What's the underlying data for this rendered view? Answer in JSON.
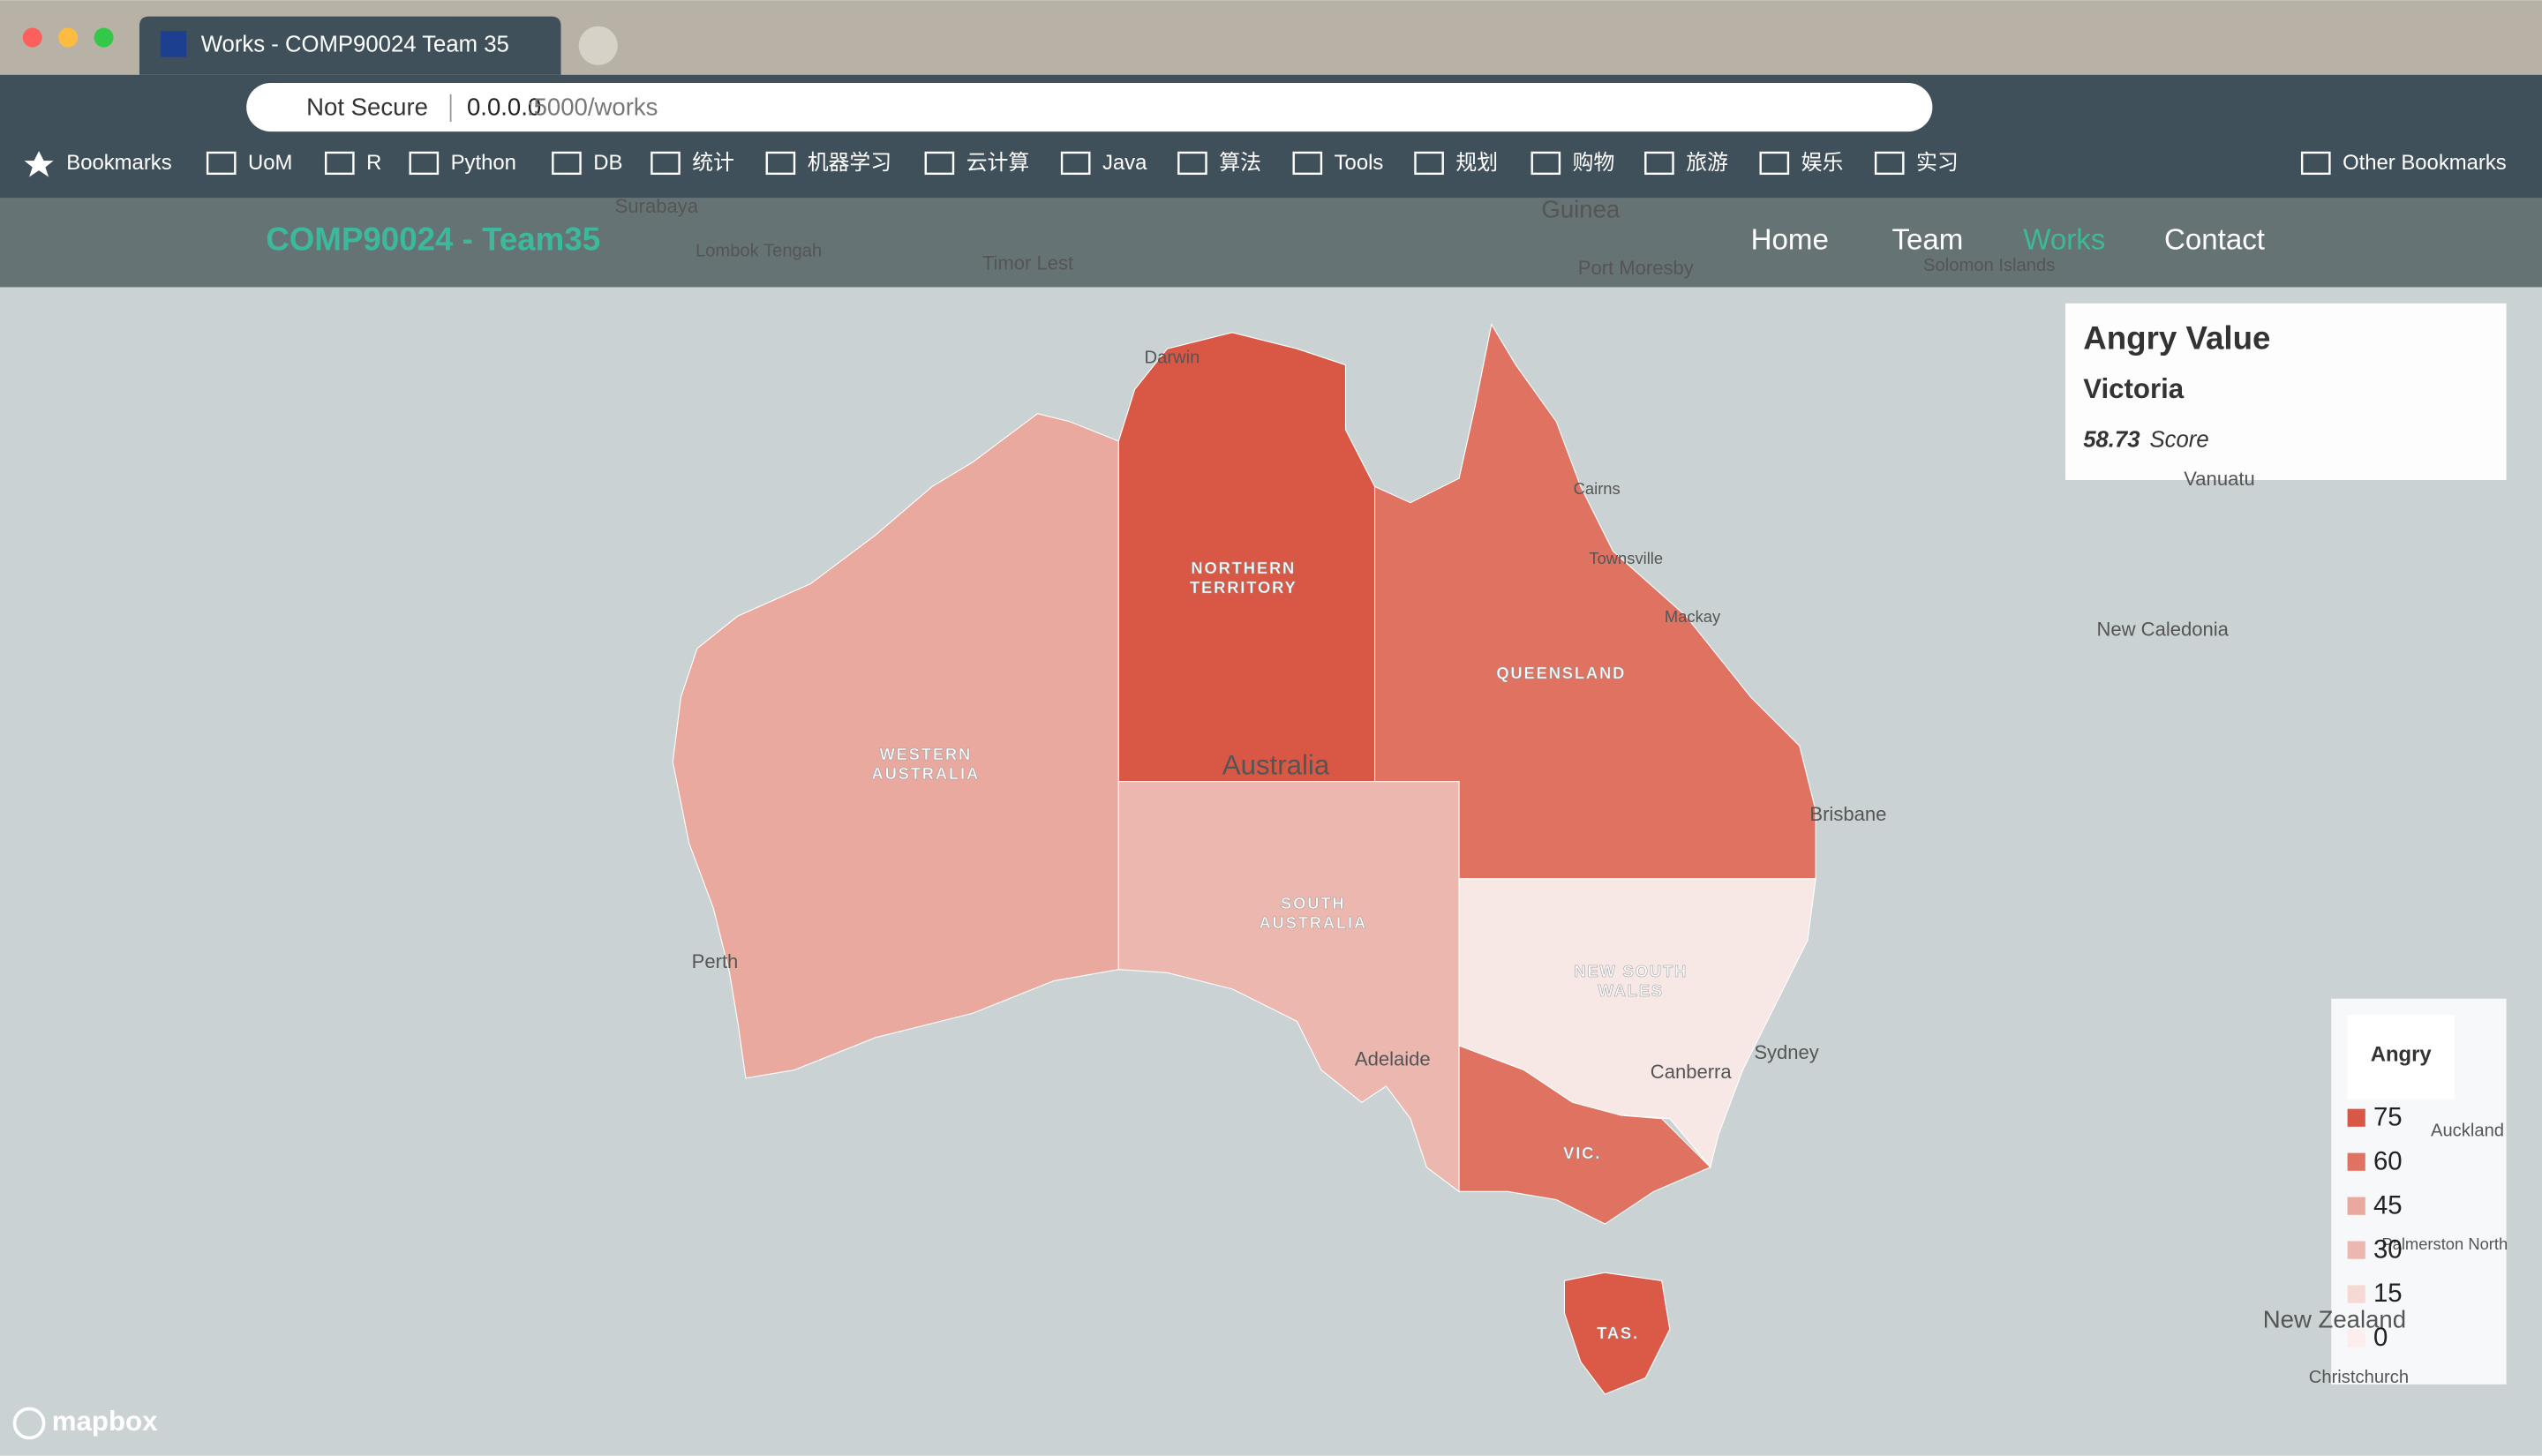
{
  "browser": {
    "tab_title": "Works - COMP90024 Team 35",
    "security": "Not Secure",
    "url_host": "0.0.0.0",
    "url_path": ":5000/works",
    "bookmarks": [
      "Bookmarks",
      "UoM",
      "R",
      "Python",
      "DB",
      "统计",
      "机器学习",
      "云计算",
      "Java",
      "算法",
      "Tools",
      "规划",
      "购物",
      "旅游",
      "娱乐",
      "实习"
    ],
    "other_bookmarks": "Other Bookmarks"
  },
  "site": {
    "brand": "COMP90024 - Team35",
    "nav": [
      "Home",
      "Team",
      "Works",
      "Contact"
    ]
  },
  "map": {
    "states": [
      {
        "label": [
          "WESTERN",
          "AUSTRALIA"
        ],
        "color": "#e9a99f"
      },
      {
        "label": [
          "NORTHERN",
          "TERRITORY"
        ],
        "color": "#d95845"
      },
      {
        "label": [
          "SOUTH",
          "AUSTRALIA"
        ],
        "color": "#ebb7af"
      },
      {
        "label": [
          "QUEENSLAND"
        ],
        "color": "#e07261"
      },
      {
        "label": [
          "NEW SOUTH",
          "WALES"
        ],
        "color": "#f8e8e5"
      },
      {
        "label": [
          "VIC."
        ],
        "color": "#e07261"
      },
      {
        "label": [
          "TAS."
        ],
        "color": "#db5a47"
      }
    ],
    "places": [
      "Darwin",
      "Cairns",
      "Townsville",
      "Mackay",
      "Brisbane",
      "Sydney",
      "Canberra",
      "Adelaide",
      "Perth",
      "Australia",
      "New Caledonia",
      "Vanuatu",
      "Solomon Islands",
      "Port Moresby",
      "Guinea",
      "Timor Lest",
      "Lombok Tengah",
      "Surabaya",
      "New Zealand",
      "Auckland",
      "Palmerston North",
      "Christchurch"
    ],
    "attribution": "mapbox"
  },
  "info": {
    "title": "Angry Value",
    "region": "Victoria",
    "score": 58.73,
    "unit": "Score"
  },
  "legend": {
    "title": "Angry",
    "grades": [
      75,
      60,
      45,
      30,
      15,
      0
    ],
    "colors": [
      "#d95845",
      "#e07261",
      "#e9a99f",
      "#ebb7af",
      "#f7d9d4",
      "#fbeeec"
    ]
  }
}
